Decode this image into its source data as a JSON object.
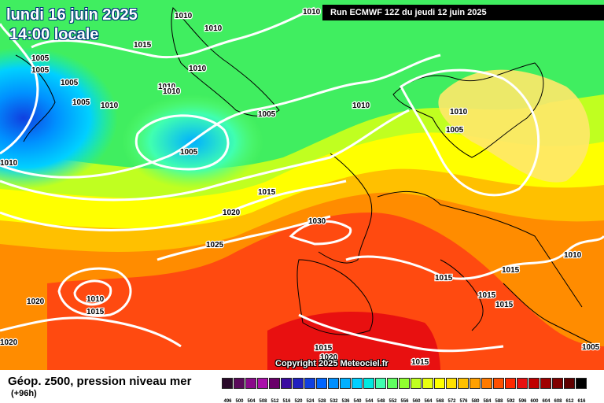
{
  "header": {
    "date": "lundi 16 juin 2025",
    "time": "14:00 locale",
    "run": "Run ECMWF 12Z du jeudi 12 juin 2025"
  },
  "copyright": "Copyright 2025 Meteociel.fr",
  "footer": {
    "title": "Géop. z500, pression niveau mer",
    "lead": "(+96h)"
  },
  "legend": {
    "labels": [
      "496",
      "500",
      "504",
      "508",
      "512",
      "516",
      "520",
      "524",
      "528",
      "532",
      "536",
      "540",
      "544",
      "548",
      "552",
      "556",
      "560",
      "564",
      "568",
      "572",
      "576",
      "580",
      "584",
      "588",
      "592",
      "596",
      "600",
      "604",
      "608",
      "612",
      "616"
    ],
    "colors": [
      "#2a0a2a",
      "#5a0a5a",
      "#8a0a8a",
      "#aa10aa",
      "#6a006a",
      "#3a0aa0",
      "#2020c0",
      "#1040e0",
      "#0066ff",
      "#0090ff",
      "#00b0ff",
      "#00d0ff",
      "#00e8e0",
      "#40ffb0",
      "#60ff60",
      "#90ff30",
      "#c0ff20",
      "#e8ff10",
      "#ffff00",
      "#ffe000",
      "#ffc000",
      "#ffa000",
      "#ff7a00",
      "#ff5000",
      "#ff2800",
      "#e81010",
      "#c00000",
      "#a00000",
      "#800000",
      "#600000",
      "#000000"
    ]
  },
  "isobars": [
    "1010",
    "1015",
    "1010",
    "1005",
    "1005",
    "1005",
    "1005",
    "1010",
    "1010",
    "1010",
    "1010",
    "1010",
    "1005",
    "1005",
    "1010",
    "1010",
    "1010",
    "1005",
    "1015",
    "1020",
    "1025",
    "1030",
    "1010",
    "1015",
    "1020",
    "1010",
    "1015",
    "1020",
    "1015",
    "1015",
    "1015",
    "1015",
    "1015",
    "1020",
    "1005",
    "1010"
  ]
}
